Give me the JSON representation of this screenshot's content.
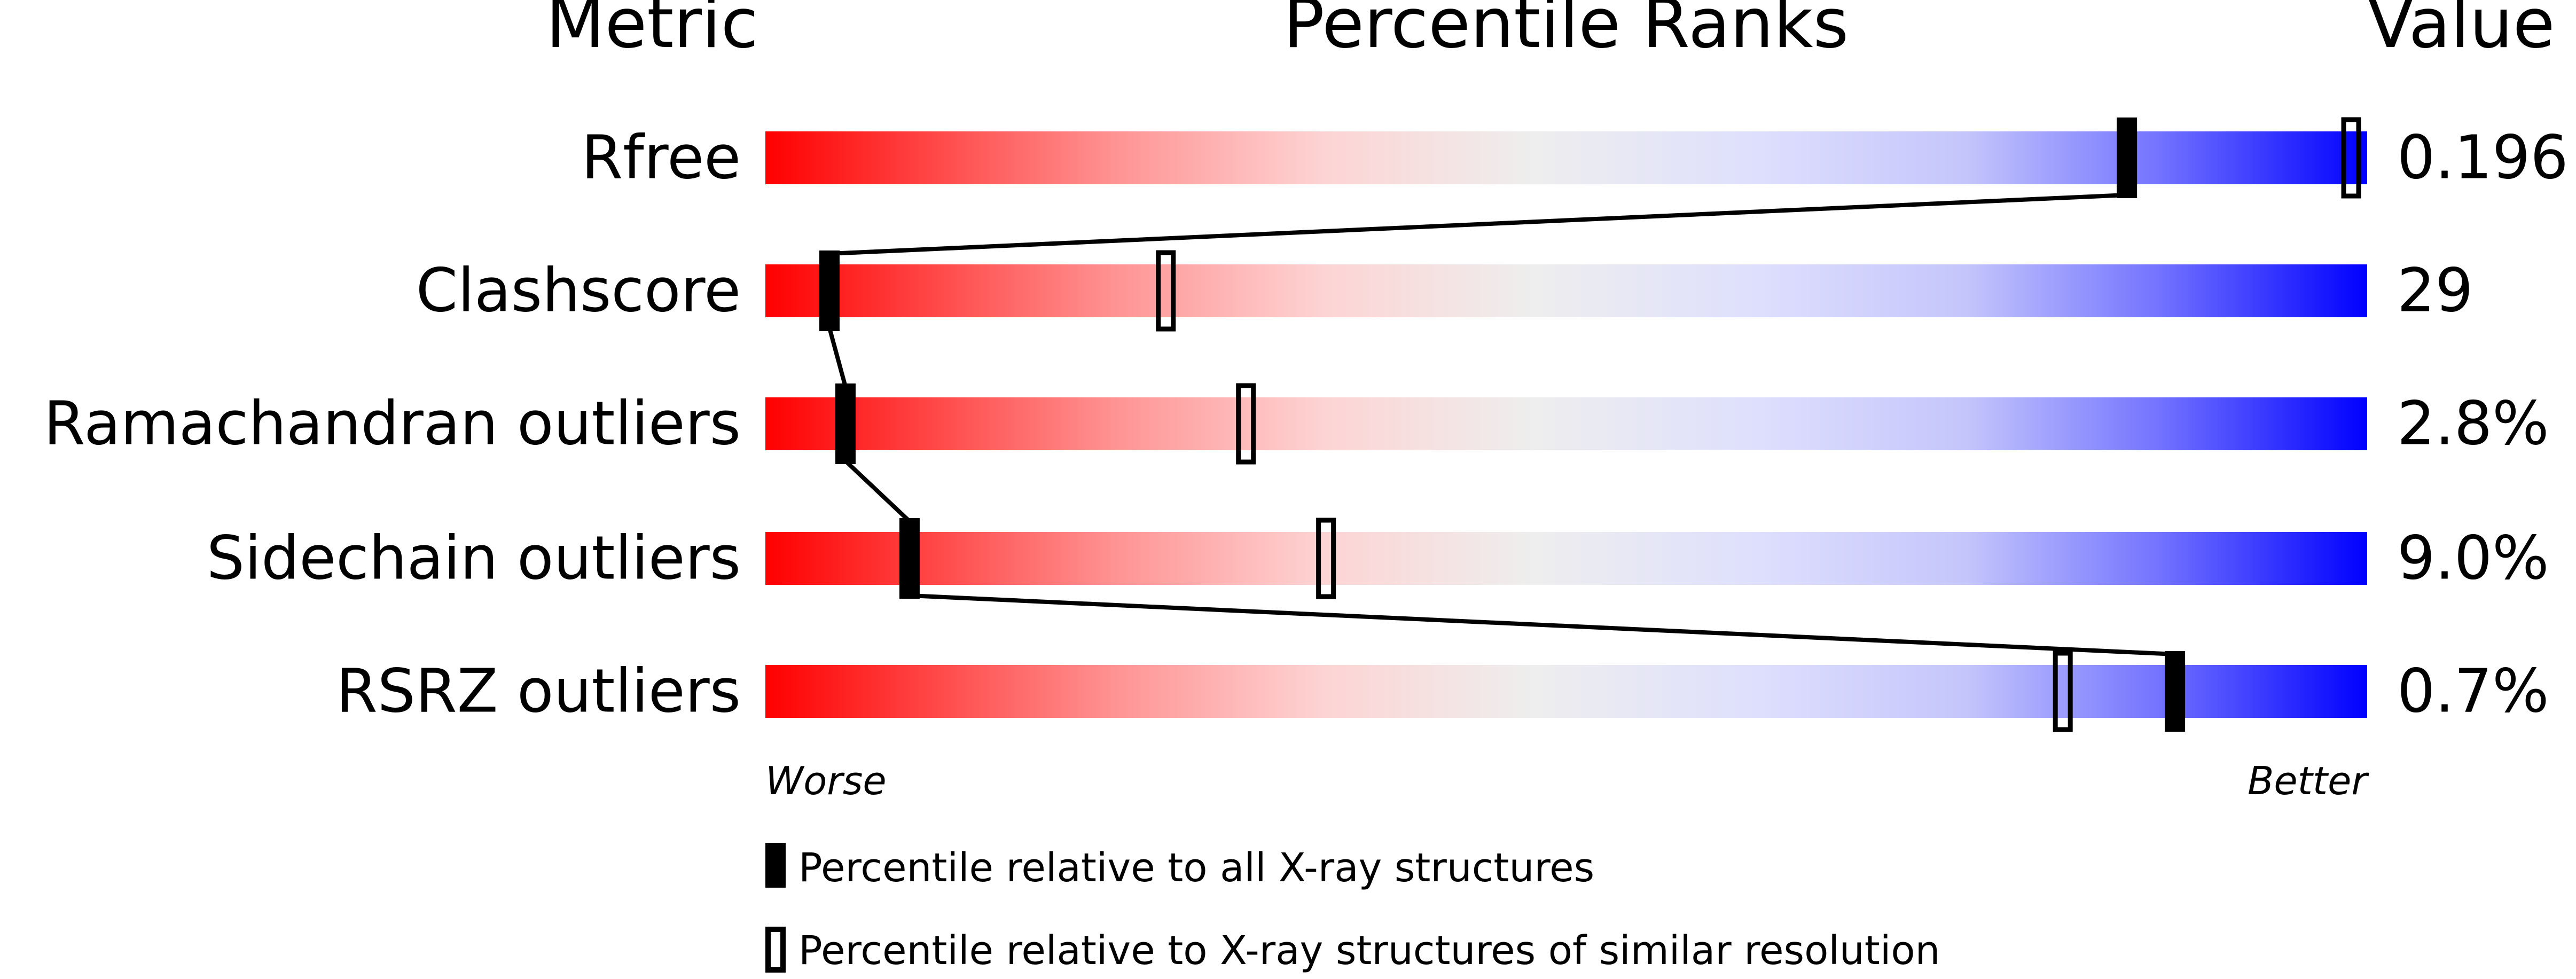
{
  "chart_data": {
    "type": "percentile-bar",
    "headers": {
      "metric": "Metric",
      "ranks": "Percentile Ranks",
      "value": "Value"
    },
    "axis": {
      "worse_label": "Worse",
      "better_label": "Better",
      "range": [
        0,
        100
      ]
    },
    "rows": [
      {
        "metric": "Rfree",
        "value": "0.196",
        "percentile_all": 85,
        "percentile_similar": 99
      },
      {
        "metric": "Clashscore",
        "value": "29",
        "percentile_all": 4,
        "percentile_similar": 25
      },
      {
        "metric": "Ramachandran outliers",
        "value": "2.8%",
        "percentile_all": 5,
        "percentile_similar": 30
      },
      {
        "metric": "Sidechain outliers",
        "value": "9.0%",
        "percentile_all": 9,
        "percentile_similar": 35
      },
      {
        "metric": "RSRZ outliers",
        "value": "0.7%",
        "percentile_all": 88,
        "percentile_similar": 81
      }
    ],
    "legend": [
      {
        "marker": "filled",
        "label": "Percentile relative to all X-ray structures"
      },
      {
        "marker": "open",
        "label": "Percentile relative to X-ray structures of similar resolution"
      }
    ],
    "colors": {
      "worse": "#ff0000",
      "middle": "#eeeeee",
      "better": "#0000ff"
    }
  }
}
